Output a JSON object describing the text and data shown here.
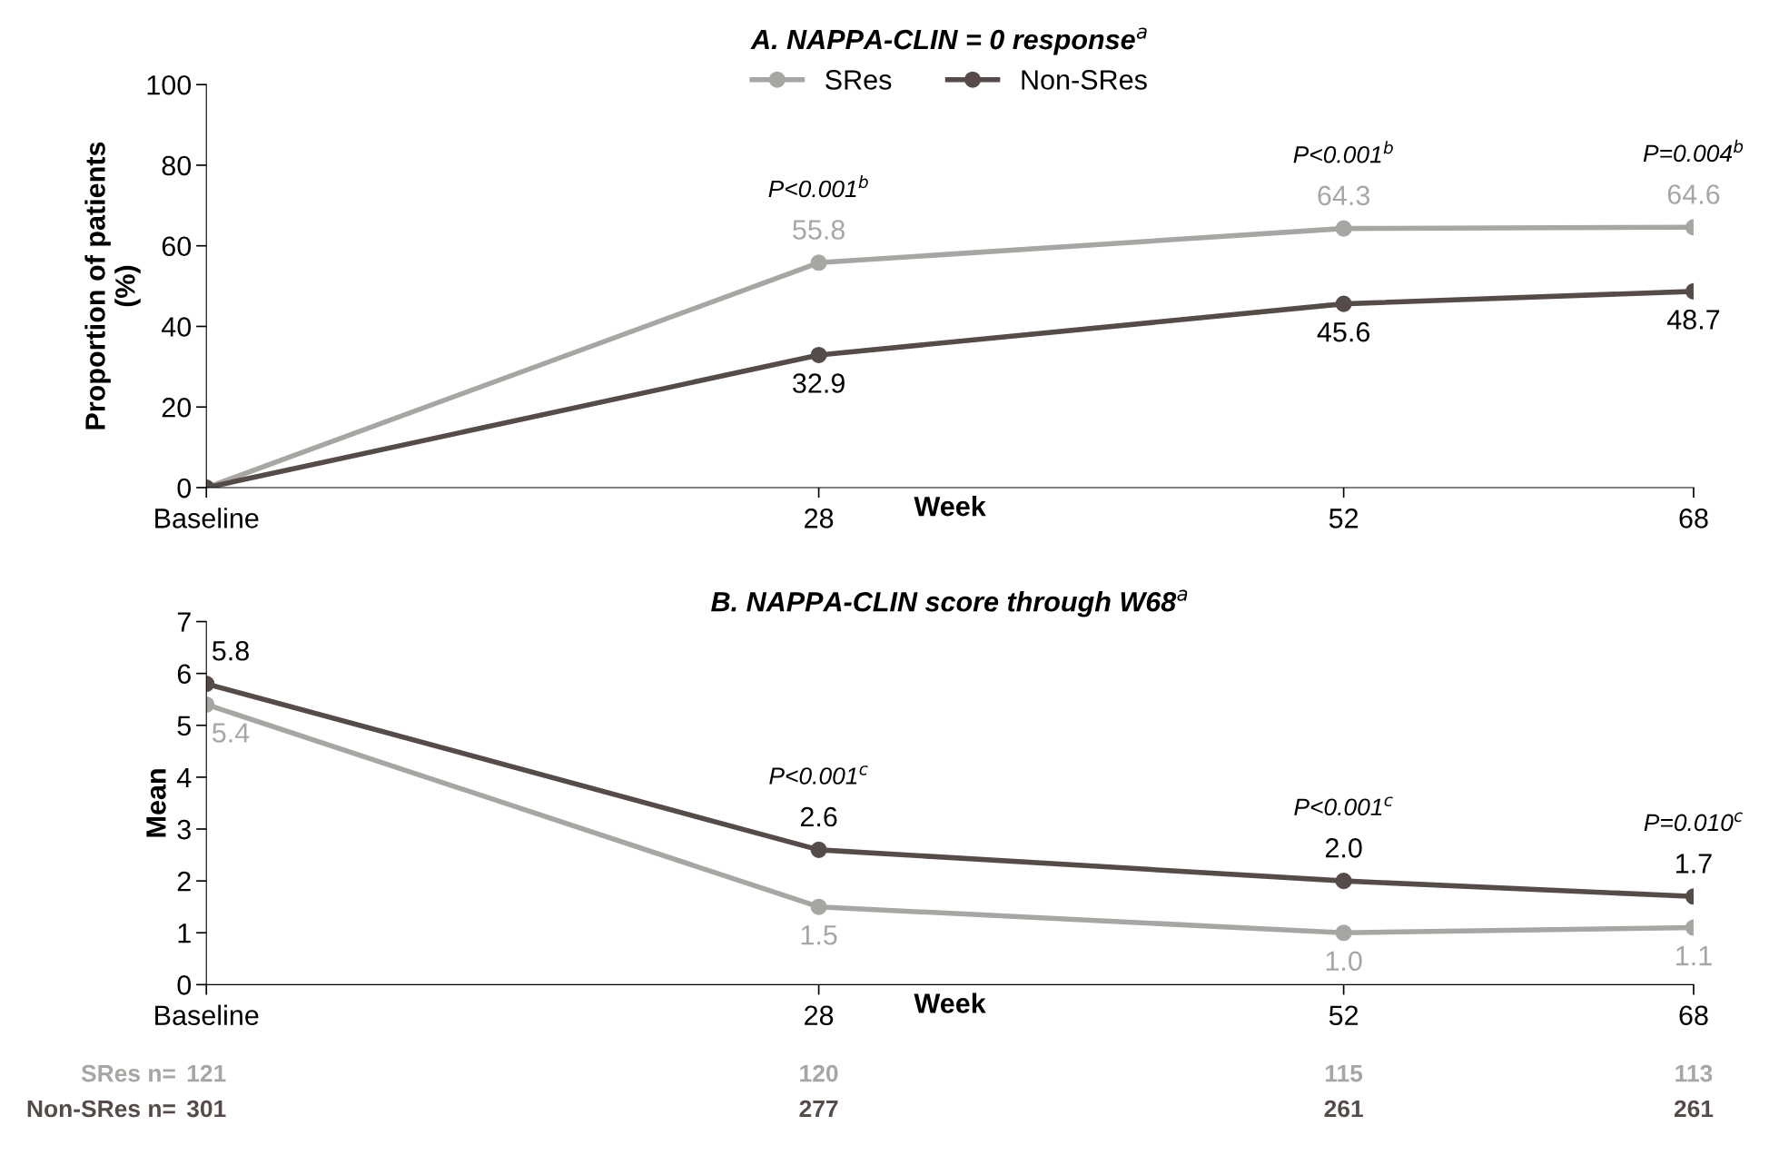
{
  "chart_data": [
    {
      "type": "line",
      "title": "A. NAPPA-CLIN = 0 response$^{a}$",
      "xlabel": "Week",
      "ylabel": "Proportion of patients\n(%)",
      "x": [
        0,
        28,
        52,
        68
      ],
      "xlim": [
        0,
        68
      ],
      "xticks": [
        {
          "value": 0,
          "label": "Baseline"
        },
        28,
        52,
        68
      ],
      "ylim": [
        0,
        100
      ],
      "yticks": [
        0,
        20,
        40,
        60,
        80,
        100
      ],
      "grid": false,
      "legend": "top",
      "marker": "circle",
      "line_style": "solid",
      "series": [
        {
          "name": "SRes",
          "color": "#a6a6a3",
          "values": [
            0,
            55.8,
            64.3,
            64.6
          ],
          "value_labels": [
            null,
            "55.8",
            "64.3",
            "64.6"
          ]
        },
        {
          "name": "Non-SRes",
          "color": "#554b48",
          "values": [
            0,
            32.9,
            45.6,
            48.7
          ],
          "value_labels": [
            null,
            "32.9",
            "45.6",
            "48.7"
          ]
        }
      ],
      "annotations": [
        {
          "text": "P<0.001$^{b}$",
          "x": 28,
          "y": 55.8
        },
        {
          "text": "P<0.001$^{b}$",
          "x": 52,
          "y": 64.3
        },
        {
          "text": "P=0.004$^{b}$",
          "x": 68,
          "y": 64.6
        }
      ]
    },
    {
      "type": "line",
      "title": "B. NAPPA-CLIN score through W68$^{a}$",
      "xlabel": "Week",
      "ylabel": "Mean",
      "x": [
        0,
        28,
        52,
        68
      ],
      "xlim": [
        0,
        68
      ],
      "xticks": [
        {
          "value": 0,
          "label": "Baseline"
        },
        28,
        52,
        68
      ],
      "ylim": [
        0,
        7
      ],
      "yticks": [
        0,
        1,
        2,
        3,
        4,
        5,
        6,
        7
      ],
      "grid": false,
      "legend": false,
      "marker": "circle",
      "line_style": "solid",
      "series": [
        {
          "color": "#a6a6a3",
          "values": [
            5.4,
            1.5,
            1.0,
            1.1
          ],
          "value_labels": [
            "5.4",
            "1.5",
            "1.0",
            "1.1"
          ]
        },
        {
          "color": "#554b48",
          "values": [
            5.8,
            2.6,
            2.0,
            1.7
          ],
          "value_labels": [
            "5.8",
            "2.6",
            "2.0",
            "1.7"
          ]
        }
      ],
      "annotations": [
        {
          "text": "P<0.001$^{c}$",
          "x": 28,
          "y": 2.6
        },
        {
          "text": "P<0.001$^{c}$",
          "x": 52,
          "y": 2.0
        },
        {
          "text": "P=0.010$^{c}$",
          "x": 68,
          "y": 1.7
        },
        "SRes n=",
        "121",
        "120",
        "115",
        "113",
        "Non-SRes n=",
        "301",
        "277",
        "261",
        "261"
      ]
    }
  ]
}
